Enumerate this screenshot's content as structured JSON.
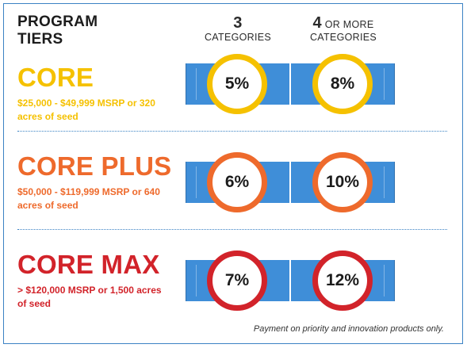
{
  "heading": "PROGRAM\nTIERS",
  "columns": [
    {
      "number": "3",
      "label": "CATEGORIES"
    },
    {
      "number": "4",
      "suffix": "OR MORE",
      "label": "CATEGORIES"
    }
  ],
  "tiers": [
    {
      "name": "CORE",
      "description": "$25,000 - $49,999 MSRP or 320 acres of seed",
      "rate_3": "5%",
      "rate_4": "8%",
      "color": "#f5c100"
    },
    {
      "name": "CORE PLUS",
      "description": "$50,000 - $119,999 MSRP or 640 acres of seed",
      "rate_3": "6%",
      "rate_4": "10%",
      "color": "#ee6a2c"
    },
    {
      "name": "CORE MAX",
      "description": "> $120,000 MSRP or 1,500 acres of seed",
      "rate_3": "7%",
      "rate_4": "12%",
      "color": "#d2232a"
    }
  ],
  "footnote": "Payment on priority and innovation products only.",
  "colors": {
    "border": "#3b82c4",
    "bar": "#3f8ed8",
    "text": "#1c1c1c"
  }
}
